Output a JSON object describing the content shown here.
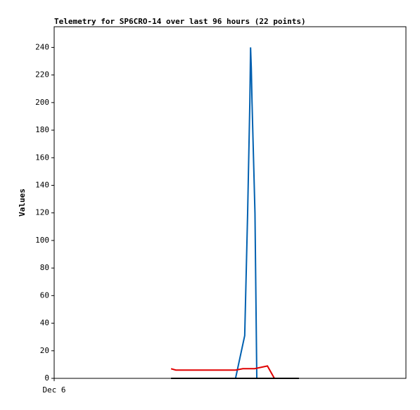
{
  "chart_data": {
    "type": "line",
    "title": "Telemetry for SP6CRO-14 over last 96 hours (22 points)",
    "ylabel": "Values",
    "xlim": [
      0,
      96
    ],
    "xticks": [
      {
        "value": 0,
        "label": "Dec 6"
      }
    ],
    "ylim": [
      0,
      255
    ],
    "yticks": [
      0,
      20,
      40,
      60,
      80,
      100,
      120,
      140,
      160,
      180,
      200,
      220,
      240
    ],
    "series": [
      {
        "color": "#0060b0",
        "x": [
          49.5,
          52.0,
          52.8,
          53.4,
          53.6,
          53.8,
          54.0,
          54.8,
          55.3
        ],
        "values": [
          0,
          31,
          120,
          200,
          240,
          225,
          200,
          120,
          0
        ]
      },
      {
        "color": "#e00000",
        "x": [
          31.9,
          33.2,
          49.5,
          51.5,
          54.7,
          58.2,
          60.1
        ],
        "values": [
          7,
          6,
          6,
          7,
          7,
          9,
          0
        ]
      },
      {
        "color": "#000000",
        "x": [
          31.9,
          66.8
        ],
        "values": [
          0,
          0
        ]
      }
    ]
  }
}
